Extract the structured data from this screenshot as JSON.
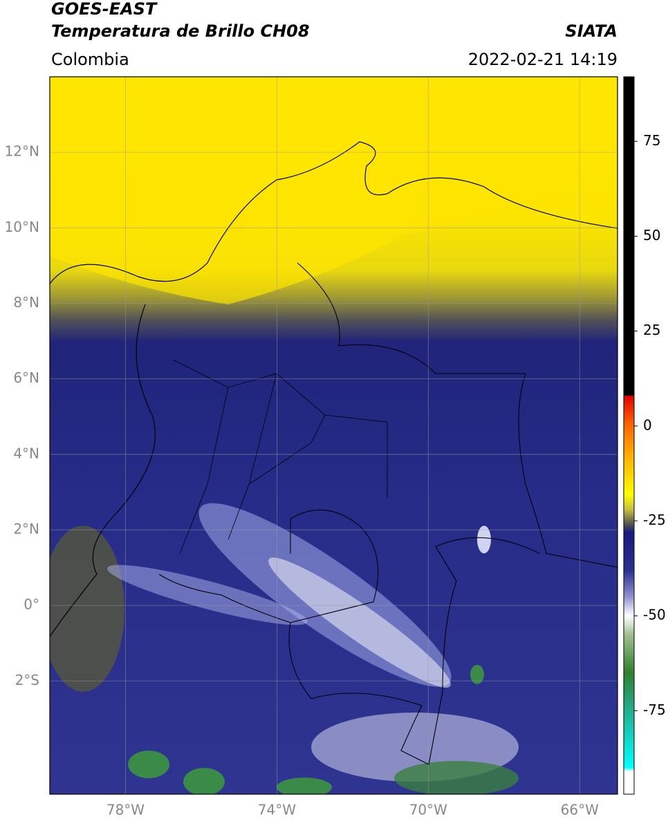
{
  "header": {
    "title": "GOES-EAST",
    "subtitle": "Temperatura de Brillo CH08",
    "source": "SIATA",
    "region": "Colombia",
    "datetime": "2022-02-21 14:19"
  },
  "map": {
    "lon_range": [
      -80,
      -65
    ],
    "lat_range": [
      -5,
      14
    ],
    "grid": true,
    "lon_ticks": [
      {
        "value": -78,
        "label": "78°W"
      },
      {
        "value": -74,
        "label": "74°W"
      },
      {
        "value": -70,
        "label": "70°W"
      },
      {
        "value": -66,
        "label": "66°W"
      }
    ],
    "lat_ticks": [
      {
        "value": 12,
        "label": "12°N"
      },
      {
        "value": 10,
        "label": "10°N"
      },
      {
        "value": 8,
        "label": "8°N"
      },
      {
        "value": 6,
        "label": "6°N"
      },
      {
        "value": 4,
        "label": "4°N"
      },
      {
        "value": 2,
        "label": "2°N"
      },
      {
        "value": 0,
        "label": "0°"
      },
      {
        "value": -2,
        "label": "2°S"
      }
    ]
  },
  "colorbar": {
    "range": [
      -97,
      92
    ],
    "ticks": [
      75,
      50,
      25,
      0,
      -25,
      -50,
      -75
    ],
    "stops": [
      {
        "value": 92,
        "color": "#000000"
      },
      {
        "value": 8,
        "color": "#000000"
      },
      {
        "value": 8,
        "color": "#e00000"
      },
      {
        "value": 0,
        "color": "#ff6a00"
      },
      {
        "value": -10,
        "color": "#ffc000"
      },
      {
        "value": -18,
        "color": "#ffff00"
      },
      {
        "value": -22,
        "color": "#c8c040"
      },
      {
        "value": -26,
        "color": "#505050"
      },
      {
        "value": -28,
        "color": "#1a1a80"
      },
      {
        "value": -38,
        "color": "#2a3090"
      },
      {
        "value": -45,
        "color": "#9090d0"
      },
      {
        "value": -50,
        "color": "#ffffff"
      },
      {
        "value": -55,
        "color": "#a0c090"
      },
      {
        "value": -65,
        "color": "#308030"
      },
      {
        "value": -75,
        "color": "#20b090"
      },
      {
        "value": -90,
        "color": "#00ffff"
      },
      {
        "value": -91,
        "color": "#ffffff"
      },
      {
        "value": -97,
        "color": "#ffffff"
      }
    ]
  }
}
